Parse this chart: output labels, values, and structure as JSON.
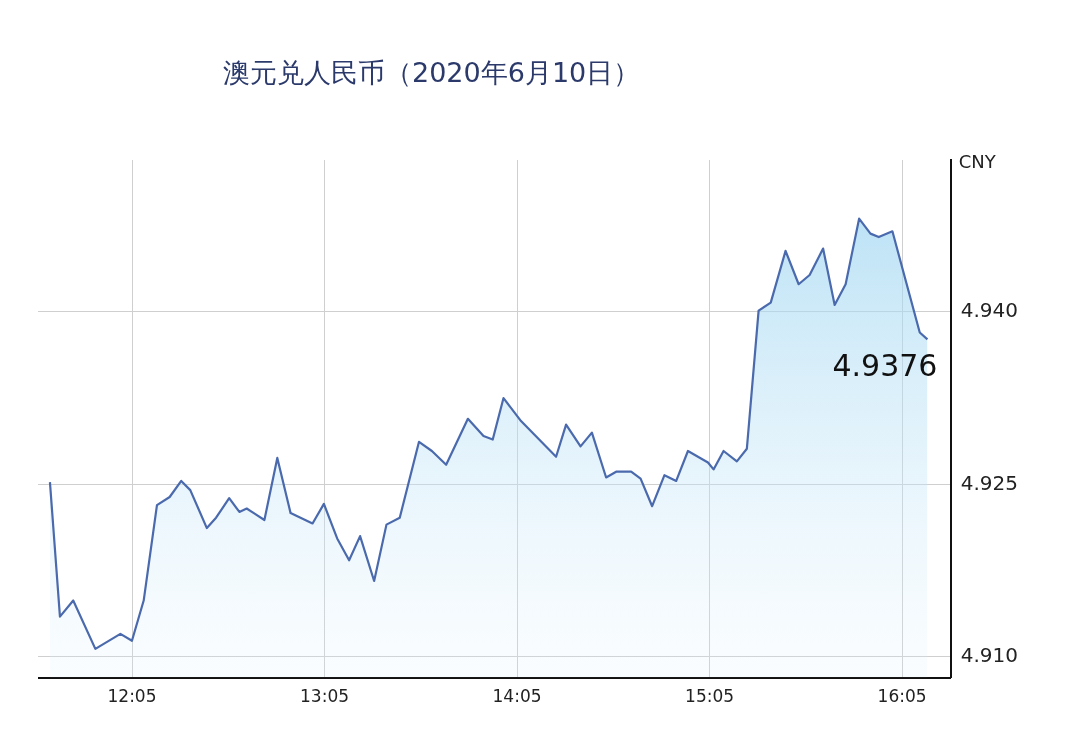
{
  "chart_data": {
    "type": "area",
    "title": "澳元兑人民币（2020年6月10日）",
    "ylabel": "CNY",
    "x": [
      11.657,
      11.709,
      11.778,
      11.893,
      12.023,
      12.083,
      12.144,
      12.213,
      12.279,
      12.339,
      12.386,
      12.472,
      12.52,
      12.588,
      12.641,
      12.679,
      12.771,
      12.838,
      12.907,
      13.021,
      13.08,
      13.149,
      13.211,
      13.268,
      13.341,
      13.405,
      13.474,
      13.574,
      13.641,
      13.715,
      13.828,
      13.909,
      13.957,
      14.013,
      14.104,
      14.286,
      14.338,
      14.413,
      14.472,
      14.546,
      14.598,
      14.676,
      14.725,
      14.785,
      14.849,
      14.91,
      14.971,
      15.075,
      15.104,
      15.156,
      15.225,
      15.277,
      15.338,
      15.401,
      15.478,
      15.546,
      15.603,
      15.673,
      15.733,
      15.79,
      15.86,
      15.919,
      15.962,
      16.033,
      16.175,
      16.215
    ],
    "series": [
      {
        "color": "#4a6aad",
        "values": [
          4.9252,
          4.9135,
          4.9149,
          4.9107,
          4.912,
          4.9114,
          4.9149,
          4.9232,
          4.9239,
          4.9253,
          4.9245,
          4.9212,
          4.9221,
          4.9238,
          4.9226,
          4.9229,
          4.9219,
          4.9273,
          4.9225,
          4.9216,
          4.9233,
          4.9203,
          4.9184,
          4.9205,
          4.9166,
          4.9215,
          4.9221,
          4.9287,
          4.9279,
          4.9267,
          4.9307,
          4.9292,
          4.9289,
          4.9325,
          4.9305,
          4.9274,
          4.9302,
          4.9283,
          4.9295,
          4.9256,
          4.9261,
          4.9261,
          4.9255,
          4.9231,
          4.9258,
          4.9253,
          4.9279,
          4.9269,
          4.9263,
          4.9279,
          4.927,
          4.9281,
          4.9401,
          4.9408,
          4.9453,
          4.9424,
          4.9432,
          4.9455,
          4.9406,
          4.9424,
          4.9481,
          4.9468,
          4.9465,
          4.947,
          4.9382,
          4.9376
        ]
      }
    ],
    "xlim": [
      11.595,
      16.336
    ],
    "ylim": [
      4.9082,
      4.9532
    ],
    "xticks": [
      {
        "value": 12.0833,
        "label": "12:05"
      },
      {
        "value": 13.0833,
        "label": "13:05"
      },
      {
        "value": 14.0833,
        "label": "14:05"
      },
      {
        "value": 15.0833,
        "label": "15:05"
      },
      {
        "value": 16.0833,
        "label": "16:05"
      }
    ],
    "yticks": [
      {
        "value": 4.91,
        "label": "4.910"
      },
      {
        "value": 4.925,
        "label": "4.925"
      },
      {
        "value": 4.94,
        "label": "4.940"
      }
    ],
    "grid": true,
    "legend": false,
    "marker": "none",
    "line_style": "solid",
    "annotations": [
      {
        "text": "4.9376",
        "x": 16.215,
        "y": 4.9376
      }
    ]
  }
}
